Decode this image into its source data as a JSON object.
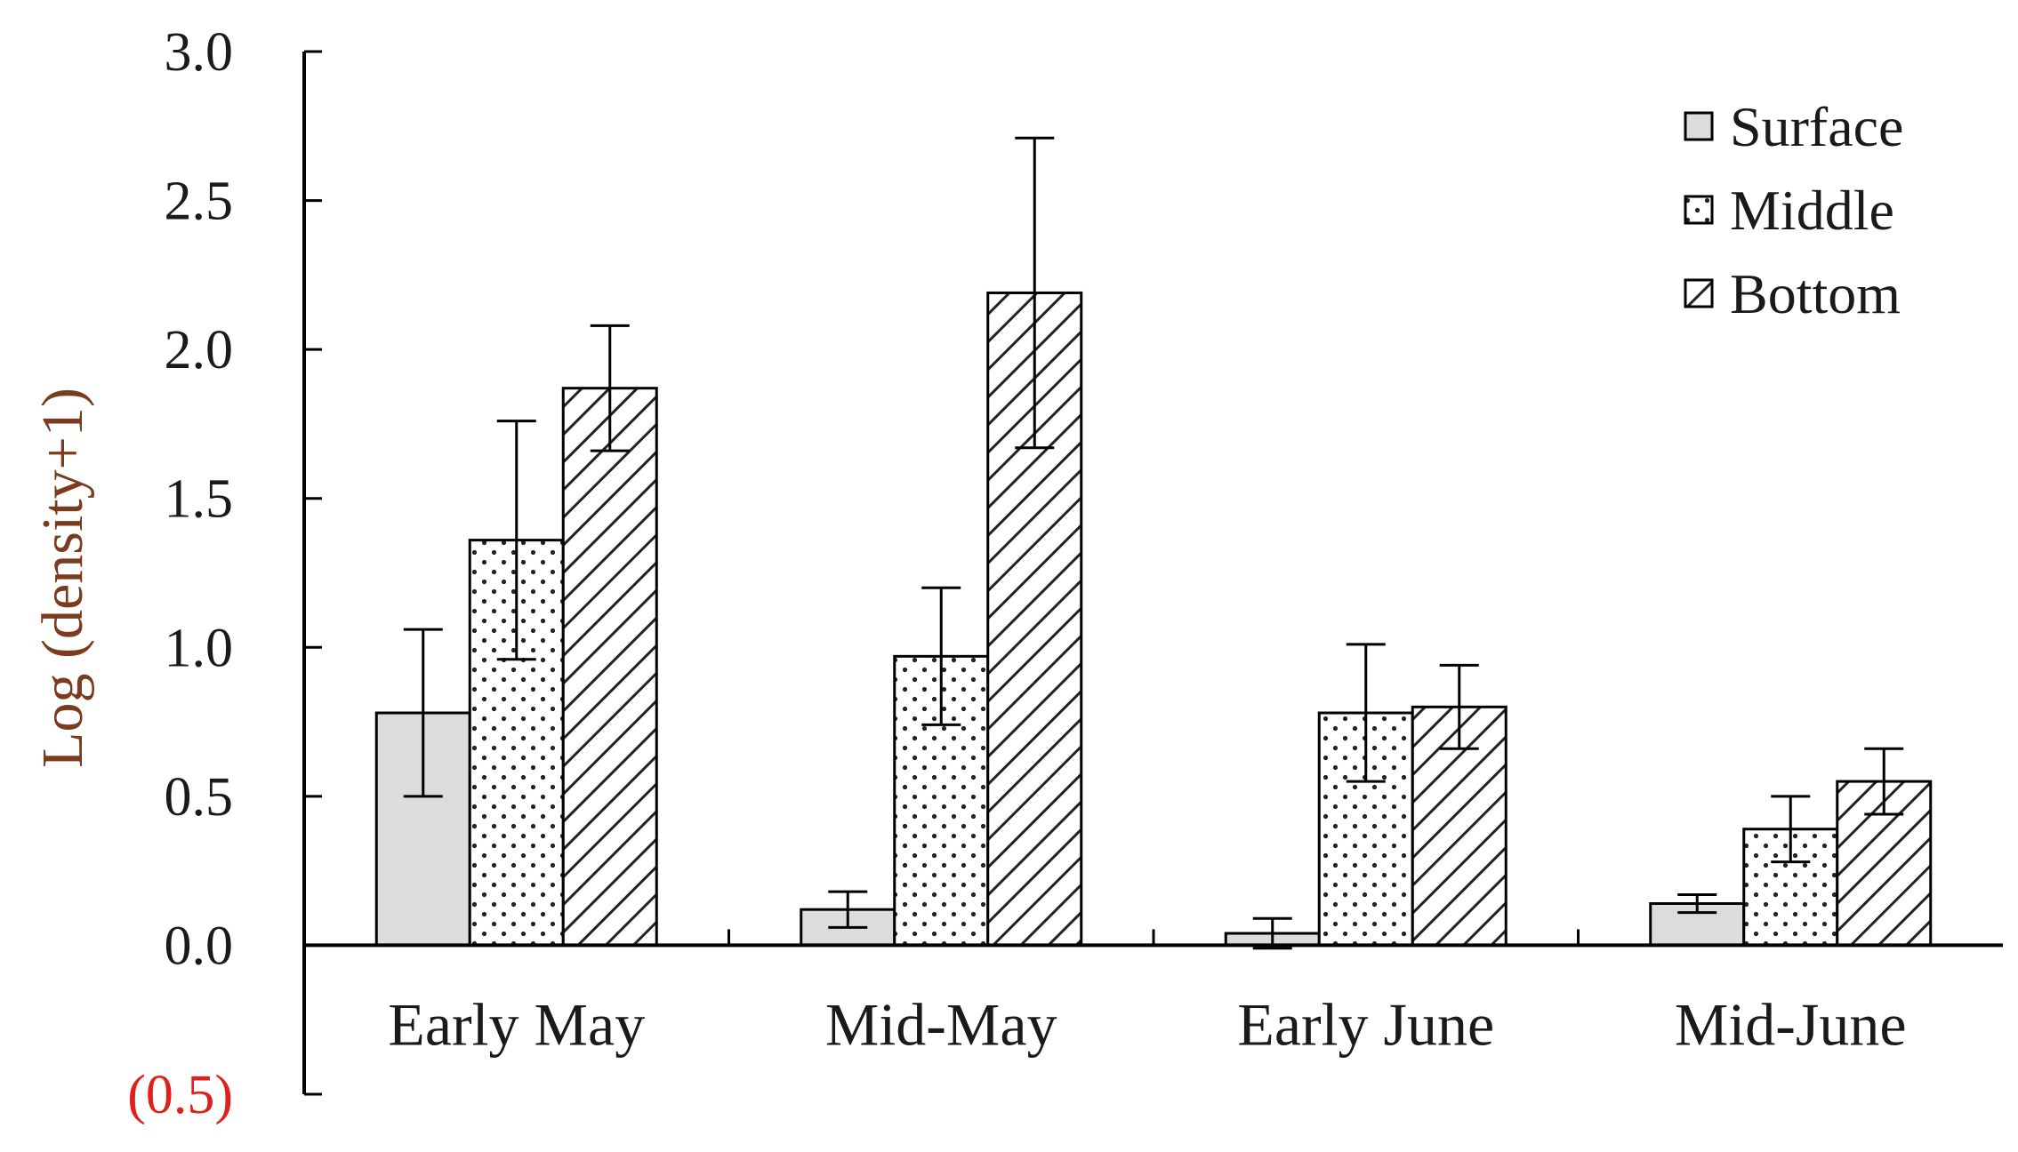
{
  "chart_data": {
    "type": "bar",
    "title": "",
    "xlabel": "",
    "ylabel": "Log (density+1)",
    "ylim": [
      -0.5,
      3.0
    ],
    "yticks": [
      {
        "value": 3.0,
        "label": "3.0",
        "color": "#1a1a1a"
      },
      {
        "value": 2.5,
        "label": "2.5",
        "color": "#1a1a1a"
      },
      {
        "value": 2.0,
        "label": "2.0",
        "color": "#1a1a1a"
      },
      {
        "value": 1.5,
        "label": "1.5",
        "color": "#1a1a1a"
      },
      {
        "value": 1.0,
        "label": "1.0",
        "color": "#1a1a1a"
      },
      {
        "value": 0.5,
        "label": "0.5",
        "color": "#1a1a1a"
      },
      {
        "value": 0.0,
        "label": "0.0",
        "color": "#1a1a1a"
      },
      {
        "value": -0.5,
        "label": "(0.5)",
        "color": "#e0201a"
      }
    ],
    "categories": [
      "Early May",
      "Mid-May",
      "Early June",
      "Mid-June"
    ],
    "series": [
      {
        "name": "Surface",
        "pattern": "solid-gray",
        "values": [
          0.78,
          0.12,
          0.04,
          0.14
        ],
        "errors": [
          0.28,
          0.06,
          0.05,
          0.03
        ]
      },
      {
        "name": "Middle",
        "pattern": "dots",
        "values": [
          1.36,
          0.97,
          0.78,
          0.39
        ],
        "errors": [
          0.4,
          0.23,
          0.23,
          0.11
        ]
      },
      {
        "name": "Bottom",
        "pattern": "diagonal-hatch",
        "values": [
          1.87,
          2.19,
          0.8,
          0.55
        ],
        "errors": [
          0.21,
          0.52,
          0.14,
          0.11
        ]
      }
    ],
    "legend_position": "top-right",
    "grid": false
  }
}
